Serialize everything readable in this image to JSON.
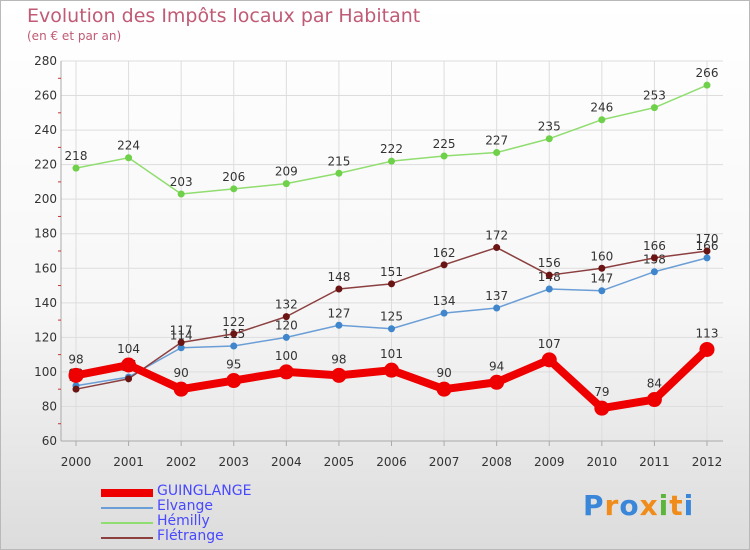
{
  "header": {
    "title": "Evolution des Impôts locaux par Habitant",
    "subtitle": "(en € et par an)"
  },
  "chart_data": {
    "type": "line",
    "title": "Evolution des Impôts locaux par Habitant",
    "subtitle": "(en € et par an)",
    "xlabel": "",
    "ylabel": "",
    "x": [
      "2000",
      "2001",
      "2002",
      "2003",
      "2004",
      "2005",
      "2006",
      "2007",
      "2008",
      "2009",
      "2010",
      "2011",
      "2012"
    ],
    "ylim": [
      60,
      280
    ],
    "yticks": [
      "60",
      "80",
      "100",
      "120",
      "140",
      "160",
      "180",
      "200",
      "220",
      "240",
      "260",
      "280"
    ],
    "grid": true,
    "legend_position": "bottom-left",
    "series": [
      {
        "name": "GUINGLANGE",
        "color": "#ee0000",
        "values": [
          98,
          104,
          90,
          95,
          100,
          98,
          101,
          90,
          94,
          107,
          79,
          84,
          113
        ],
        "labels": [
          "98",
          "104",
          "90",
          "95",
          "100",
          "98",
          "101",
          "90",
          "94",
          "107",
          "79",
          "84",
          "113"
        ]
      },
      {
        "name": "Elvange",
        "color": "#6b9ed6",
        "values": [
          92,
          97,
          114,
          115,
          120,
          127,
          125,
          134,
          137,
          148,
          147,
          158,
          166
        ],
        "labels": [
          "92",
          "97",
          "114",
          "115",
          "120",
          "127",
          "125",
          "134",
          "137",
          "148",
          "147",
          "158",
          "166"
        ]
      },
      {
        "name": "Hémilly",
        "color": "#90dd70",
        "values": [
          218,
          224,
          203,
          206,
          209,
          215,
          222,
          225,
          227,
          235,
          246,
          253,
          266
        ],
        "labels": [
          "218",
          "224",
          "203",
          "206",
          "209",
          "215",
          "222",
          "225",
          "227",
          "235",
          "246",
          "253",
          "266"
        ]
      },
      {
        "name": "Flétrange",
        "color": "#8b3f3f",
        "values": [
          90,
          96,
          117,
          122,
          132,
          148,
          151,
          162,
          172,
          156,
          160,
          166,
          170
        ],
        "labels": [
          "90",
          "96",
          "117",
          "122",
          "132",
          "148",
          "151",
          "162",
          "172",
          "156",
          "160",
          "166",
          "170"
        ]
      }
    ]
  },
  "legend": [
    {
      "label": "GUINGLANGE",
      "color": "#ee0000"
    },
    {
      "label": "Elvange",
      "color": "#6b9ed6"
    },
    {
      "label": "Hémilly",
      "color": "#90dd70"
    },
    {
      "label": "Flétrange",
      "color": "#8b3f3f"
    }
  ],
  "logo": {
    "text": "Proxiti",
    "letters": [
      "P",
      "r",
      "o",
      "x",
      "i",
      "t",
      "i"
    ],
    "colors": [
      "#3a86d8",
      "#f08c1a",
      "#3a86d8",
      "#f08c1a",
      "#5bb53a",
      "#f08c1a",
      "#3a86d8"
    ]
  }
}
